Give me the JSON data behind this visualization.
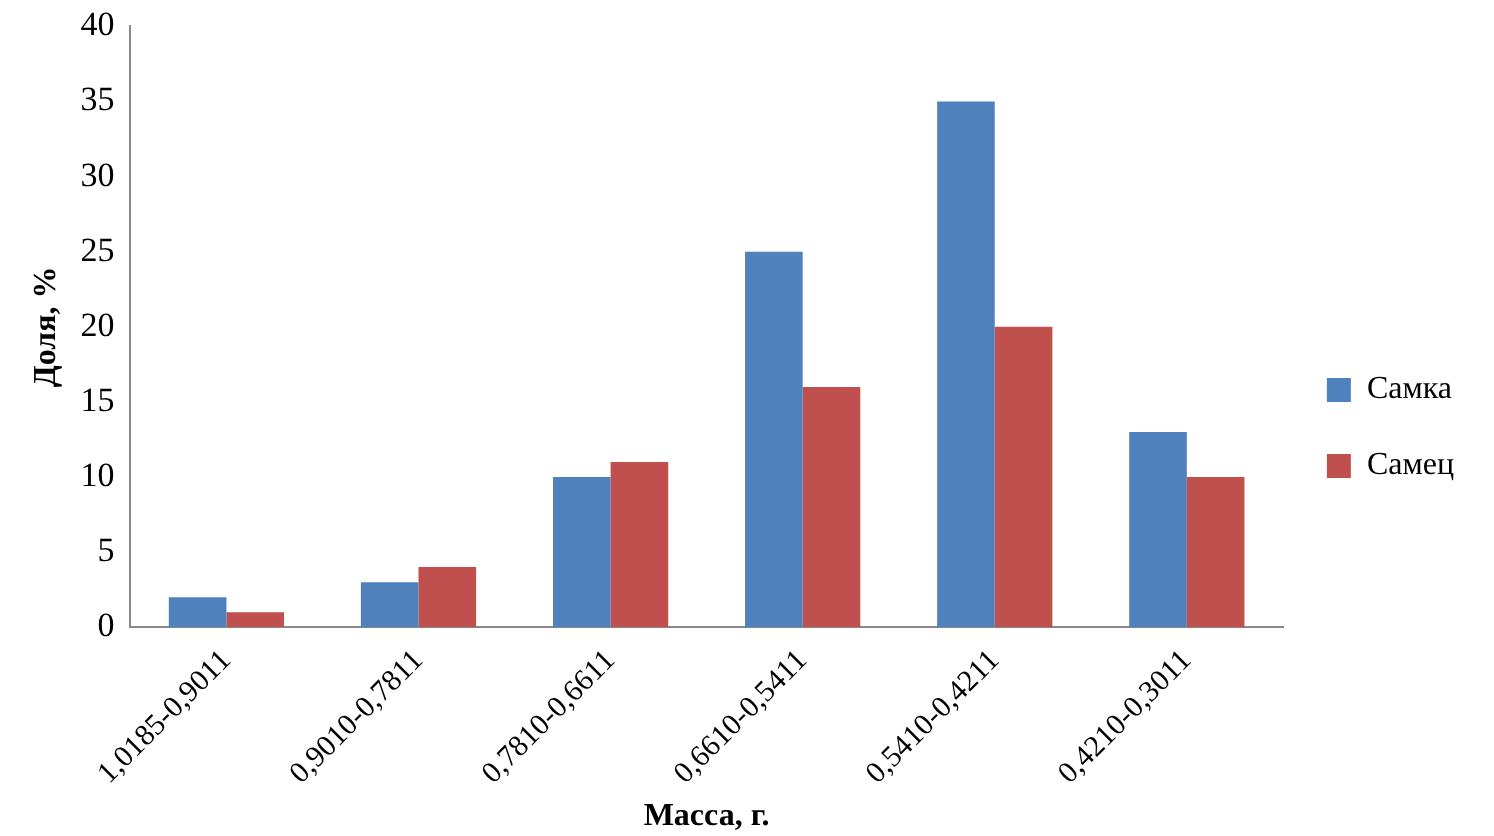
{
  "chart_data": {
    "type": "bar",
    "xlabel": "Масса, г.",
    "ylabel": "Доля, %",
    "categories": [
      "1,0185-0,9011",
      "0,9010-0,7811",
      "0,7810-0,6611",
      "0,6610-0,5411",
      "0,5410-0,4211",
      "0,4210-0,3011"
    ],
    "series": [
      {
        "name": "Самка",
        "color": "#4f81bd",
        "values": [
          2,
          3,
          10,
          25,
          35,
          13
        ]
      },
      {
        "name": "Самец",
        "color": "#c0504d",
        "values": [
          1,
          4,
          11,
          16,
          20,
          10
        ]
      }
    ],
    "ylim": [
      0,
      40
    ],
    "yticks": [
      0,
      5,
      10,
      15,
      20,
      25,
      30,
      35,
      40
    ],
    "grid": false,
    "legend": "right"
  }
}
